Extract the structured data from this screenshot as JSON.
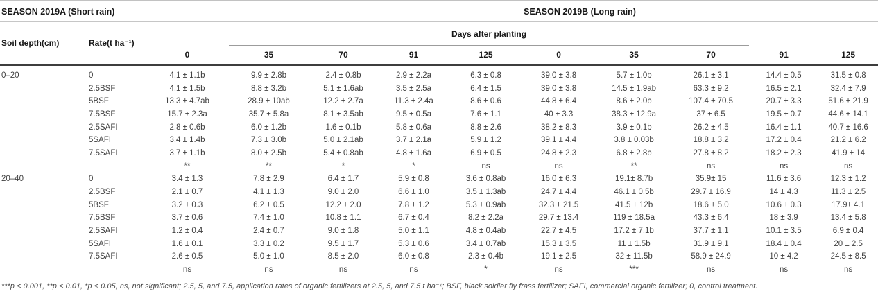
{
  "table": {
    "season_a_header": "SEASON 2019A (Short rain)",
    "season_b_header": "SEASON 2019B (Long rain)",
    "col1_header": "Soil depth(cm)",
    "col2_header": "Rate(t ha⁻¹)",
    "spanner_header": "Days after planting",
    "day_columns": [
      "0",
      "35",
      "70",
      "91",
      "125",
      "0",
      "35",
      "70",
      "91",
      "125"
    ],
    "sections": [
      {
        "soil_depth": "0–20",
        "rows": [
          {
            "rate": "0",
            "values": [
              "4.1 ± 1.1b",
              "9.9 ± 2.8b",
              "2.4 ± 0.8b",
              "2.9 ± 2.2a",
              "6.3 ± 0.8",
              "39.0 ± 3.8",
              "5.7 ± 1.0b",
              "26.1 ± 3.1",
              "14.4 ± 0.5",
              "31.5 ± 0.8"
            ]
          },
          {
            "rate": "2.5BSF",
            "values": [
              "4.1 ± 1.5b",
              "8.8 ± 3.2b",
              "5.1 ± 1.6ab",
              "3.5 ± 2.5a",
              "6.4 ± 1.5",
              "39.0 ± 3.8",
              "14.5 ± 1.9ab",
              "63.3 ± 9.2",
              "16.5 ± 2.1",
              "32.4 ± 7.9"
            ]
          },
          {
            "rate": "5BSF",
            "values": [
              "13.3 ± 4.7ab",
              "28.9 ± 10ab",
              "12.2 ± 2.7a",
              "11.3 ± 2.4a",
              "8.6 ± 0.6",
              "44.8 ± 6.4",
              "8.6 ± 2.0b",
              "107.4 ± 70.5",
              "20.7 ± 3.3",
              "51.6 ± 21.9"
            ]
          },
          {
            "rate": "7.5BSF",
            "values": [
              "15.7 ± 2.3a",
              "35.7 ± 5.8a",
              "8.1 ± 3.5ab",
              "9.5 ± 0.5a",
              "7.6 ± 1.1",
              "40 ± 3.3",
              "38.3 ± 12.9a",
              "37 ± 6.5",
              "19.5 ± 0.7",
              "44.6 ± 14.1"
            ]
          },
          {
            "rate": "2.5SAFI",
            "values": [
              "2.8 ± 0.6b",
              "6.0 ± 1.2b",
              "1.6 ± 0.1b",
              "5.8 ± 0.6a",
              "8.8 ± 2.6",
              "38.2 ± 8.3",
              "3.9 ± 0.1b",
              "26.2 ± 4.5",
              "16.4 ± 1.1",
              "40.7 ± 16.6"
            ]
          },
          {
            "rate": "5SAFI",
            "values": [
              "3.4 ± 1.4b",
              "7.3 ± 3.0b",
              "5.0 ± 2.1ab",
              "3.7 ± 2.1a",
              "5.9 ± 1.2",
              "39.1 ± 4.4",
              "3.8 ± 0.03b",
              "18.8 ± 3.2",
              "17.2 ± 0.4",
              "21.2 ± 6.2"
            ]
          },
          {
            "rate": "7.5SAFI",
            "values": [
              "3.7 ± 1.1b",
              "8.0 ± 2.5b",
              "5.4 ± 0.8ab",
              "4.8 ± 1.6a",
              "6.9 ± 0.5",
              "24.8 ± 2.3",
              "6.8 ± 2.8b",
              "27.8 ± 8.2",
              "18.2 ± 2.3",
              "41.9 ± 14"
            ]
          }
        ],
        "significance": [
          "**",
          "**",
          "*",
          "*",
          "ns",
          "ns",
          "**",
          "ns",
          "ns",
          "ns"
        ]
      },
      {
        "soil_depth": "20–40",
        "rows": [
          {
            "rate": "0",
            "values": [
              "3.4 ± 1.3",
              "7.8 ± 2.9",
              "6.4 ± 1.7",
              "5.9 ± 0.8",
              "3.6 ± 0.8ab",
              "16.0 ± 6.3",
              "19.1± 8.7b",
              "35.9± 15",
              "11.6 ± 3.6",
              "12.3 ± 1.2"
            ]
          },
          {
            "rate": "2.5BSF",
            "values": [
              "2.1 ± 0.7",
              "4.1 ± 1.3",
              "9.0 ± 2.0",
              "6.6 ± 1.0",
              "3.5 ± 1.3ab",
              "24.7 ± 4.4",
              "46.1 ± 0.5b",
              "29.7 ± 16.9",
              "14 ± 4.3",
              "11.3 ± 2.5"
            ]
          },
          {
            "rate": "5BSF",
            "values": [
              "3.2 ± 0.3",
              "6.2 ± 0.5",
              "12.2 ± 2.0",
              "7.8 ± 1.2",
              "5.3 ± 0.9ab",
              "32.3 ± 21.5",
              "41.5 ± 12b",
              "18.6 ± 5.0",
              "10.6 ± 0.3",
              "17.9± 4.1"
            ]
          },
          {
            "rate": "7.5BSF",
            "values": [
              "3.7 ± 0.6",
              "7.4 ± 1.0",
              "10.8 ± 1.1",
              "6.7 ± 0.4",
              "8.2 ± 2.2a",
              "29.7 ± 13.4",
              "119 ± 18.5a",
              "43.3 ± 6.4",
              "18 ± 3.9",
              "13.4 ± 5.8"
            ]
          },
          {
            "rate": "2.5SAFI",
            "values": [
              "1.2 ± 0.4",
              "2.4 ± 0.7",
              "9.0 ± 1.8",
              "5.0 ± 1.1",
              "4.8 ± 0.4ab",
              "22.7 ± 4.5",
              "17.2 ± 7.1b",
              "37.7 ± 1.1",
              "10.1 ± 3.5",
              "6.9 ± 0.4"
            ]
          },
          {
            "rate": "5SAFI",
            "values": [
              "1.6 ± 0.1",
              "3.3 ± 0.2",
              "9.5 ± 1.7",
              "5.3 ± 0.6",
              "3.4 ± 0.7ab",
              "15.3 ± 3.5",
              "11 ± 1.5b",
              "31.9 ± 9.1",
              "18.4 ± 0.4",
              "20 ± 2.5"
            ]
          },
          {
            "rate": "7.5SAFI",
            "values": [
              "2.6 ± 0.5",
              "5.0 ± 1.0",
              "8.5 ± 2.0",
              "6.0 ± 0.8",
              "2.3 ± 0.4b",
              "19.1 ± 2.5",
              "32 ± 11.5b",
              "58.9 ± 24.9",
              "10 ± 4.2",
              "24.5 ± 8.5"
            ]
          }
        ],
        "significance": [
          "ns",
          "ns",
          "ns",
          "ns",
          "*",
          "ns",
          "***",
          "ns",
          "ns",
          "ns"
        ]
      }
    ],
    "footnote": "***p < 0.001, **p < 0.01, *p < 0.05, ns, not significant; 2.5, 5, and 7.5, application rates of organic fertilizers at 2.5, 5, and 7.5 t ha⁻¹; BSF, black soldier fly frass fertilizer; SAFI, commercial organic fertilizer; 0, control treatment."
  }
}
